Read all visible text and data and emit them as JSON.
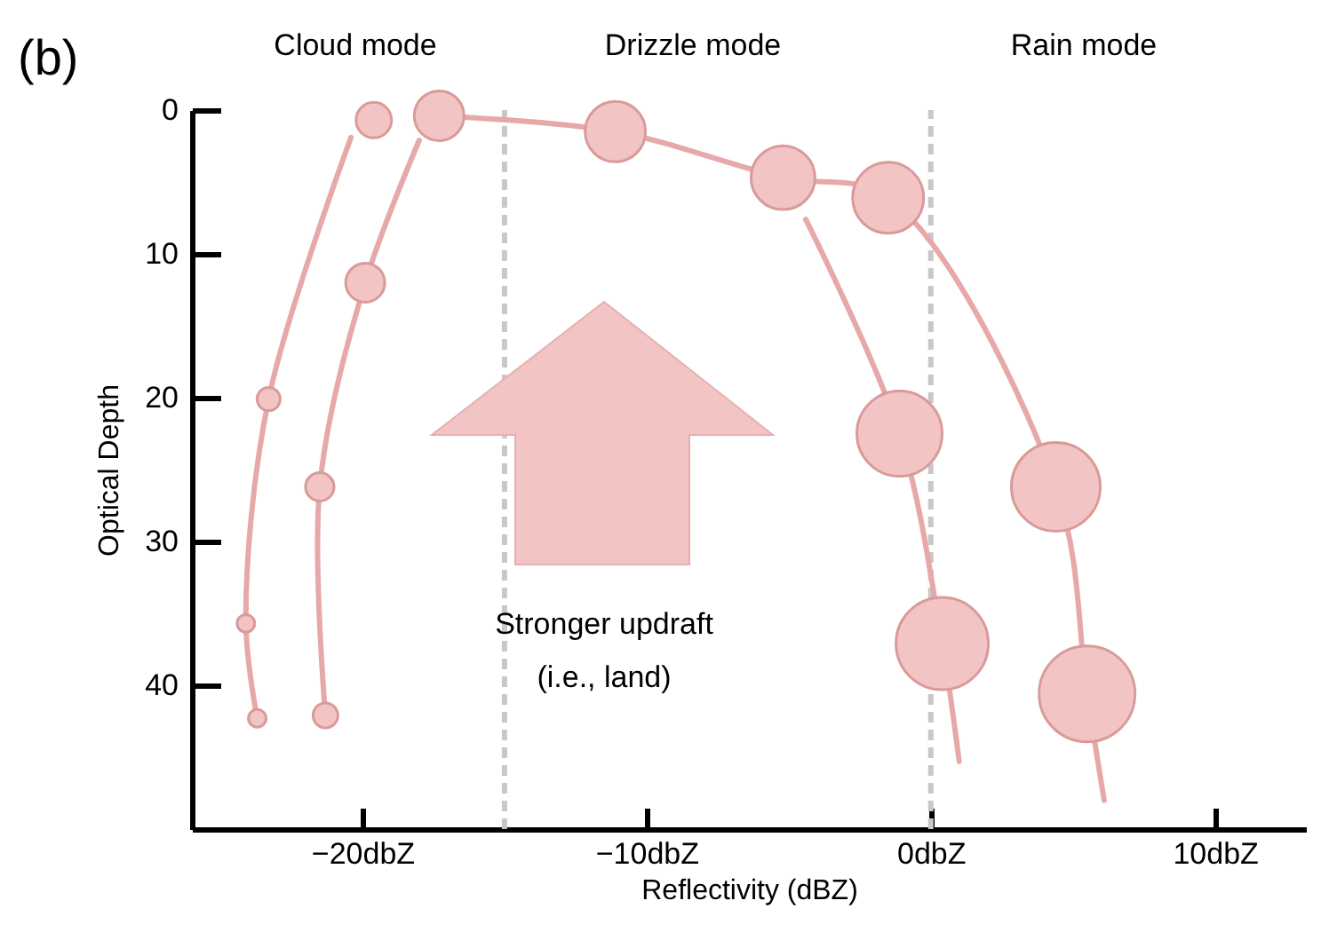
{
  "chart_data": {
    "type": "bubble",
    "xlabel": "Reflectivity (dBZ)",
    "ylabel": "Optical Depth",
    "xlim": [
      -26,
      13.2
    ],
    "ylim": [
      50,
      0
    ],
    "xticks": [
      {
        "value": -20,
        "label": "−20dbZ"
      },
      {
        "value": -10,
        "label": "−10dbZ"
      },
      {
        "value": 0,
        "label": "0dbZ"
      },
      {
        "value": 10,
        "label": "10dbZ"
      }
    ],
    "yticks": [
      0,
      10,
      20,
      30,
      40
    ],
    "grid": false,
    "series": [
      {
        "type": "line",
        "color": "#e6a8a8",
        "x": [
          -23.7,
          -24.1,
          -23.3,
          -20.4
        ],
        "values": [
          42.3,
          35.7,
          20.1,
          1.9
        ]
      },
      {
        "type": "line",
        "color": "#e6a8a8",
        "x": [
          -21.3,
          -21.5,
          -19.9,
          -18.0
        ],
        "values": [
          42.1,
          26.2,
          12.0,
          2.1
        ]
      },
      {
        "type": "line",
        "color": "#e6a8a8",
        "x": [
          -17.3,
          -11.1,
          -5.2,
          -1.5,
          4.4,
          5.5,
          6.1
        ],
        "values": [
          0.4,
          1.5,
          4.7,
          6.1,
          26.2,
          40.6,
          48
        ]
      },
      {
        "type": "line",
        "color": "#e6a8a8",
        "x": [
          -4.4,
          -1.1,
          0.4,
          1.0
        ],
        "values": [
          7.6,
          22.5,
          37.1,
          45.3
        ]
      },
      {
        "type": "bubble",
        "color": "#f2c4c4",
        "x": [
          -23.7,
          -24.1,
          -23.3,
          -19.6,
          -21.3,
          -21.5,
          -19.9,
          -17.3,
          -11.1,
          -5.2,
          -1.1,
          0.4,
          -1.5,
          4.4,
          5.5
        ],
        "values": [
          42.3,
          35.7,
          20.1,
          0.7,
          42.1,
          26.2,
          12.0,
          0.4,
          1.5,
          4.7,
          22.5,
          37.1,
          6.1,
          26.2,
          40.6
        ],
        "sizes": [
          0.034,
          0.034,
          0.058,
          0.137,
          0.067,
          0.088,
          0.166,
          0.269,
          0.396,
          0.444,
          0.79,
          0.927,
          0.549,
          0.857,
          1
        ]
      }
    ],
    "ref_lines": [
      {
        "axis": "x",
        "value": -15,
        "color": "#c8c8c8",
        "line_style": "dashed"
      },
      {
        "axis": "x",
        "value": 0,
        "color": "#c8c8c8",
        "line_style": "dashed"
      }
    ],
    "annotations": [
      "(b)",
      "Cloud mode",
      "Drizzle mode",
      "Rain mode",
      "Stronger updraft\n(i.e., land)"
    ]
  }
}
